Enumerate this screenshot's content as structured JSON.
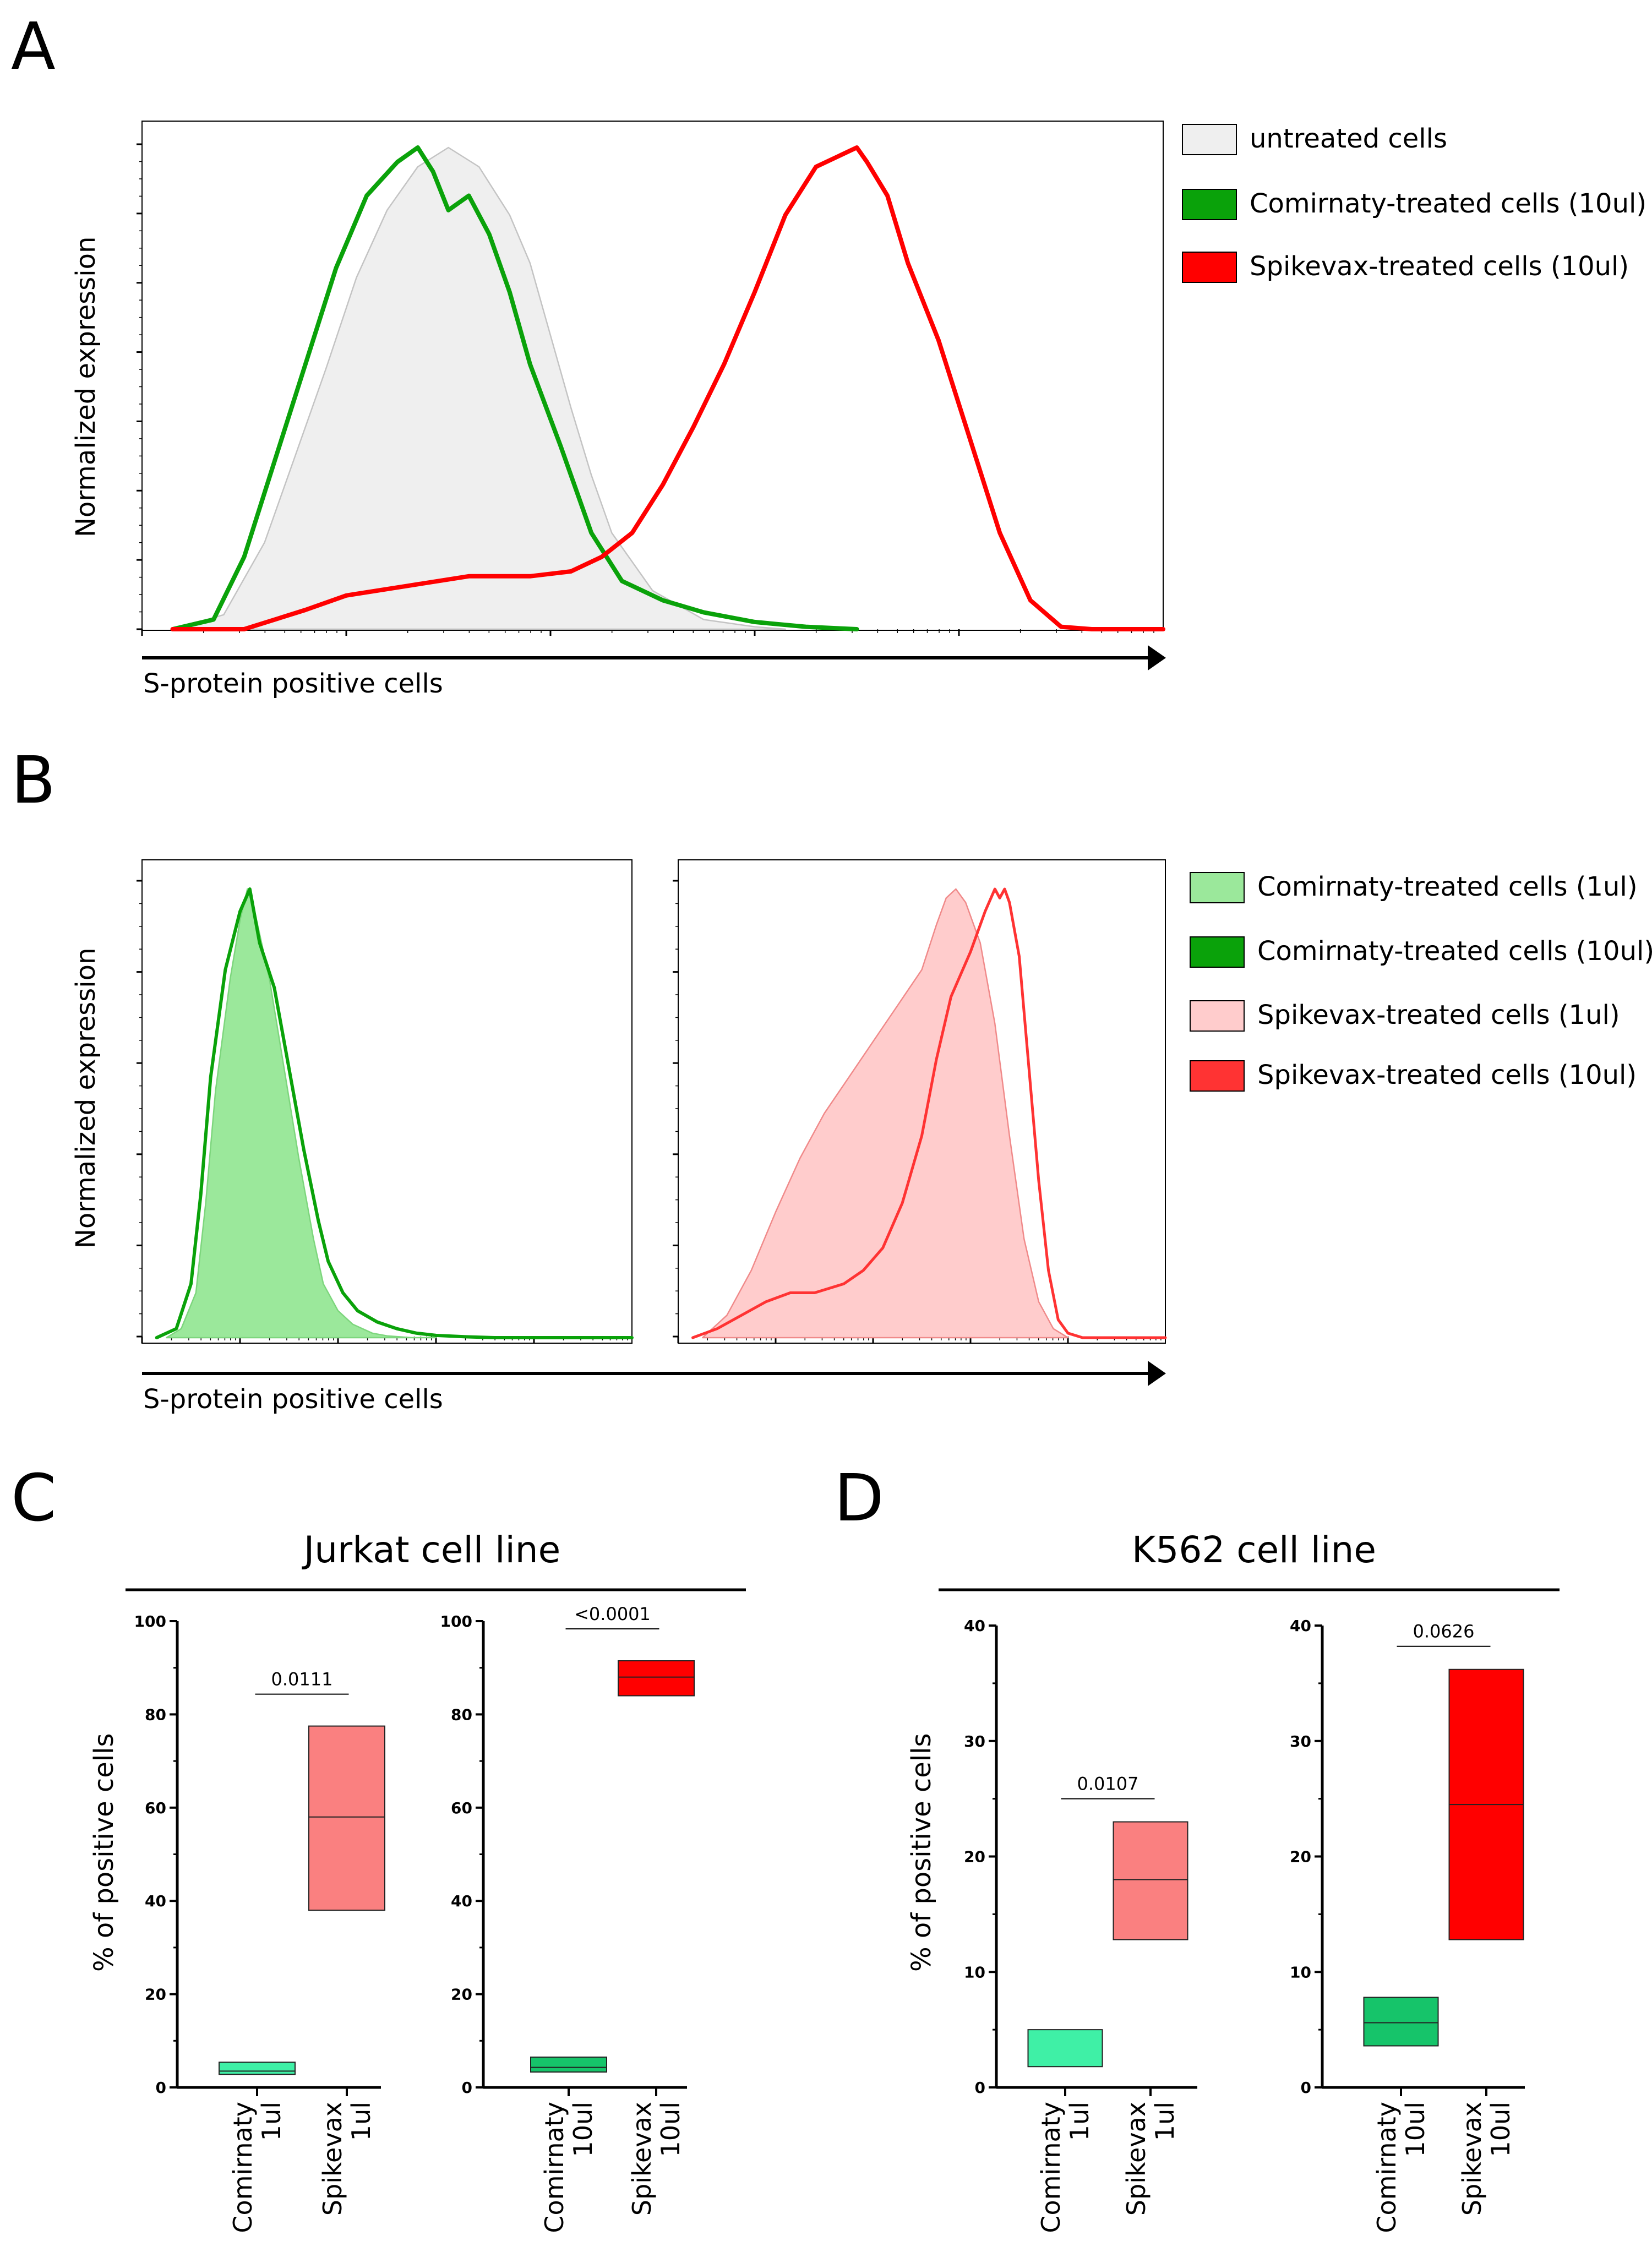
{
  "panel_labels": {
    "a": "A",
    "b": "B",
    "c": "C",
    "d": "D"
  },
  "panel_a": {
    "ylabel": "Normalized expression",
    "xlabel": "S-protein positive cells",
    "legend": [
      {
        "label": "untreated cells",
        "color": "#efefef"
      },
      {
        "label": "Comirnaty-treated cells (10ul)",
        "color": "#0aa20a"
      },
      {
        "label": "Spikevax-treated cells (10ul)",
        "color": "#ff0000"
      }
    ]
  },
  "panel_b": {
    "ylabel": "Normalized expression",
    "xlabel": "S-protein positive cells",
    "legend": [
      {
        "label": "Comirnaty-treated cells (1ul)",
        "color": "#9be89b"
      },
      {
        "label": "Comirnaty-treated cells (10ul)",
        "color": "#0aa20a"
      },
      {
        "label": "Spikevax-treated cells (1ul)",
        "color": "#ffcccc"
      },
      {
        "label": "Spikevax-treated cells (10ul)",
        "color": "#ff3333"
      }
    ]
  },
  "panel_c": {
    "title": "Jurkat cell line",
    "ylabel": "% of positive cells"
  },
  "panel_d": {
    "title": "K562 cell line",
    "ylabel": "% of positive cells"
  },
  "chart_data": [
    {
      "id": "A",
      "type": "area",
      "title": "",
      "xlabel": "S-protein positive cells",
      "ylabel": "Normalized expression",
      "x_scale": "log (unlabeled)",
      "xlim": [
        0,
        1
      ],
      "ylim": [
        0,
        1
      ],
      "series": [
        {
          "name": "untreated cells",
          "style": "filled",
          "fill": "#efefef",
          "stroke": "#c4c4c4",
          "x": [
            0.03,
            0.08,
            0.12,
            0.15,
            0.18,
            0.21,
            0.24,
            0.27,
            0.3,
            0.33,
            0.36,
            0.38,
            0.4,
            0.42,
            0.44,
            0.46,
            0.5,
            0.55,
            0.6,
            0.63
          ],
          "y": [
            0,
            0.03,
            0.18,
            0.36,
            0.54,
            0.73,
            0.87,
            0.96,
            1.0,
            0.96,
            0.86,
            0.76,
            0.61,
            0.46,
            0.32,
            0.2,
            0.08,
            0.02,
            0.005,
            0
          ]
        },
        {
          "name": "Comirnaty-treated cells (10ul)",
          "style": "line",
          "stroke": "#0aa20a",
          "x": [
            0.03,
            0.07,
            0.1,
            0.13,
            0.16,
            0.19,
            0.22,
            0.25,
            0.27,
            0.285,
            0.3,
            0.32,
            0.34,
            0.36,
            0.38,
            0.41,
            0.44,
            0.47,
            0.51,
            0.55,
            0.6,
            0.65,
            0.7
          ],
          "y": [
            0,
            0.02,
            0.15,
            0.35,
            0.55,
            0.75,
            0.9,
            0.97,
            1.0,
            0.95,
            0.87,
            0.9,
            0.82,
            0.7,
            0.55,
            0.38,
            0.2,
            0.1,
            0.06,
            0.035,
            0.015,
            0.005,
            0
          ]
        },
        {
          "name": "Spikevax-treated cells (10ul)",
          "style": "line",
          "stroke": "#ff0000",
          "x": [
            0.03,
            0.1,
            0.16,
            0.2,
            0.26,
            0.32,
            0.38,
            0.42,
            0.45,
            0.48,
            0.51,
            0.54,
            0.57,
            0.6,
            0.63,
            0.66,
            0.69,
            0.7,
            0.71,
            0.73,
            0.75,
            0.78,
            0.81,
            0.84,
            0.87,
            0.9,
            0.93,
            0.96,
            1.0
          ],
          "y": [
            0,
            0,
            0.04,
            0.07,
            0.09,
            0.11,
            0.11,
            0.12,
            0.15,
            0.2,
            0.3,
            0.42,
            0.55,
            0.7,
            0.86,
            0.96,
            0.99,
            1.0,
            0.97,
            0.9,
            0.76,
            0.6,
            0.4,
            0.2,
            0.06,
            0.005,
            0,
            0,
            0
          ]
        }
      ]
    },
    {
      "id": "B-left",
      "type": "area",
      "xlabel": "S-protein positive cells",
      "ylabel": "Normalized expression",
      "xlim": [
        0,
        1
      ],
      "ylim": [
        0,
        1
      ],
      "series": [
        {
          "name": "Comirnaty-treated cells (1ul)",
          "style": "filled",
          "fill": "#9be89b",
          "stroke": "#7dd67d",
          "x": [
            0.05,
            0.08,
            0.11,
            0.13,
            0.15,
            0.18,
            0.2,
            0.215,
            0.23,
            0.26,
            0.29,
            0.32,
            0.35,
            0.37,
            0.4,
            0.43,
            0.47,
            0.5,
            0.55,
            0.6
          ],
          "y": [
            0,
            0.02,
            0.1,
            0.3,
            0.55,
            0.8,
            0.93,
            1.0,
            0.95,
            0.8,
            0.6,
            0.4,
            0.22,
            0.12,
            0.06,
            0.03,
            0.01,
            0.004,
            0,
            0
          ]
        },
        {
          "name": "Comirnaty-treated cells (10ul)",
          "style": "line",
          "stroke": "#0aa20a",
          "x": [
            0.03,
            0.07,
            0.1,
            0.12,
            0.14,
            0.17,
            0.2,
            0.22,
            0.24,
            0.27,
            0.3,
            0.33,
            0.36,
            0.38,
            0.41,
            0.44,
            0.48,
            0.52,
            0.56,
            0.6,
            0.66,
            0.72,
            1.0
          ],
          "y": [
            0,
            0.02,
            0.12,
            0.32,
            0.58,
            0.82,
            0.95,
            1.0,
            0.88,
            0.78,
            0.6,
            0.42,
            0.26,
            0.17,
            0.1,
            0.06,
            0.035,
            0.02,
            0.01,
            0.005,
            0.002,
            0,
            0
          ]
        }
      ]
    },
    {
      "id": "B-right",
      "type": "area",
      "xlabel": "S-protein positive cells",
      "ylabel": "Normalized expression",
      "xlim": [
        0,
        1
      ],
      "ylim": [
        0,
        1
      ],
      "series": [
        {
          "name": "Spikevax-treated cells (1ul)",
          "style": "filled",
          "fill": "#ffcccc",
          "stroke": "#f08a8a",
          "x": [
            0.05,
            0.1,
            0.15,
            0.2,
            0.25,
            0.3,
            0.35,
            0.4,
            0.45,
            0.5,
            0.53,
            0.55,
            0.57,
            0.59,
            0.62,
            0.65,
            0.68,
            0.71,
            0.74,
            0.77,
            0.8
          ],
          "y": [
            0,
            0.05,
            0.15,
            0.28,
            0.4,
            0.5,
            0.58,
            0.66,
            0.74,
            0.82,
            0.92,
            0.98,
            1.0,
            0.97,
            0.88,
            0.7,
            0.45,
            0.22,
            0.08,
            0.02,
            0
          ]
        },
        {
          "name": "Spikevax-treated cells (10ul)",
          "style": "line",
          "stroke": "#ff3333",
          "x": [
            0.03,
            0.08,
            0.13,
            0.18,
            0.23,
            0.28,
            0.34,
            0.38,
            0.42,
            0.46,
            0.5,
            0.53,
            0.56,
            0.6,
            0.63,
            0.65,
            0.66,
            0.67,
            0.68,
            0.7,
            0.72,
            0.74,
            0.76,
            0.78,
            0.8,
            0.83,
            1.0
          ],
          "y": [
            0,
            0.02,
            0.05,
            0.08,
            0.1,
            0.1,
            0.12,
            0.15,
            0.2,
            0.3,
            0.45,
            0.62,
            0.76,
            0.86,
            0.95,
            1.0,
            0.98,
            1.0,
            0.97,
            0.85,
            0.6,
            0.35,
            0.15,
            0.04,
            0.01,
            0,
            0
          ]
        }
      ]
    },
    {
      "id": "C-1ul",
      "panel": "C",
      "type": "bar",
      "subtype": "floating min-max bar with mean line",
      "ylabel": "% of positive cells",
      "ylim": [
        0,
        100
      ],
      "yticks": [
        0,
        20,
        40,
        60,
        80,
        100
      ],
      "categories": [
        {
          "name": "Comirnaty",
          "dose": "1ul"
        },
        {
          "name": "Spikevax",
          "dose": "1ul"
        }
      ],
      "bars": [
        {
          "min": 2.8,
          "max": 5.4,
          "mean": 3.5,
          "color": "#3ff0a6"
        },
        {
          "min": 38,
          "max": 77.5,
          "mean": 58,
          "color": "#fa8080"
        }
      ],
      "pvalue": "0.0111"
    },
    {
      "id": "C-10ul",
      "panel": "C",
      "type": "bar",
      "subtype": "floating min-max bar with mean line",
      "ylabel": "% of positive cells",
      "ylim": [
        0,
        100
      ],
      "yticks": [
        0,
        20,
        40,
        60,
        80,
        100
      ],
      "categories": [
        {
          "name": "Comirnaty",
          "dose": "10ul"
        },
        {
          "name": "Spikevax",
          "dose": "10ul"
        }
      ],
      "bars": [
        {
          "min": 3.3,
          "max": 6.5,
          "mean": 4.3,
          "color": "#16c46a"
        },
        {
          "min": 84,
          "max": 91.5,
          "mean": 88,
          "color": "#ff0000"
        }
      ],
      "pvalue": "<0.0001"
    },
    {
      "id": "D-1ul",
      "panel": "D",
      "type": "bar",
      "subtype": "floating min-max bar with mean line",
      "ylabel": "% of positive cells",
      "ylim": [
        0,
        40
      ],
      "yticks": [
        0,
        10,
        20,
        30,
        40
      ],
      "categories": [
        {
          "name": "Comirnaty",
          "dose": "1ul"
        },
        {
          "name": "Spikevax",
          "dose": "1ul"
        }
      ],
      "bars": [
        {
          "min": 1.8,
          "max": 5.0,
          "mean": null,
          "color": "#3ff0a6"
        },
        {
          "min": 12.8,
          "max": 23.0,
          "mean": 18.0,
          "color": "#fa8080"
        }
      ],
      "pvalue": "0.0107"
    },
    {
      "id": "D-10ul",
      "panel": "D",
      "type": "bar",
      "subtype": "floating min-max bar with mean line",
      "ylabel": "% of positive cells",
      "ylim": [
        0,
        40
      ],
      "yticks": [
        0,
        10,
        20,
        30,
        40
      ],
      "categories": [
        {
          "name": "Comirnaty",
          "dose": "10ul"
        },
        {
          "name": "Spikevax",
          "dose": "10ul"
        }
      ],
      "bars": [
        {
          "min": 3.6,
          "max": 7.8,
          "mean": 5.6,
          "color": "#16c46a"
        },
        {
          "min": 12.8,
          "max": 36.2,
          "mean": 24.5,
          "color": "#ff0000"
        }
      ],
      "pvalue": "0.0626"
    }
  ]
}
